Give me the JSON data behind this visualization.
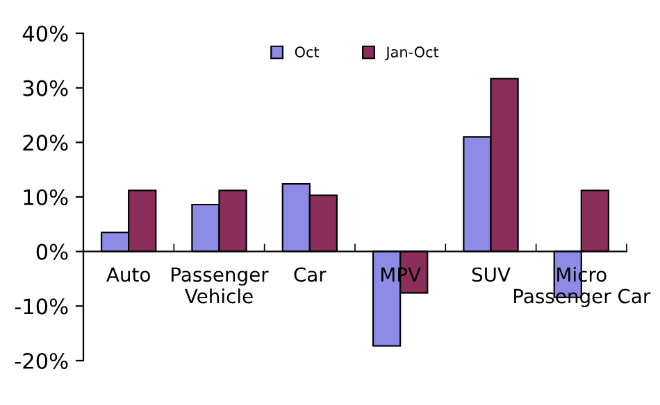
{
  "chart_data": {
    "type": "bar",
    "categories": [
      "Auto",
      "Passenger\nVehicle",
      "Car",
      "MPV",
      "SUV",
      "Micro\nPassenger Car"
    ],
    "series": [
      {
        "name": "Oct",
        "color": "#8c8ce6",
        "values": [
          3.5,
          8.6,
          12.4,
          -17.3,
          21.0,
          -8.4
        ]
      },
      {
        "name": "Jan-Oct",
        "color": "#8b2f5a",
        "values": [
          11.2,
          11.2,
          10.3,
          -7.6,
          31.7,
          11.2
        ]
      }
    ],
    "ylim": [
      -20,
      40
    ],
    "yticks": [
      {
        "value": -20,
        "label": "-20%"
      },
      {
        "value": -10,
        "label": "-10%"
      },
      {
        "value": 0,
        "label": "0%"
      },
      {
        "value": 10,
        "label": "10%"
      },
      {
        "value": 20,
        "label": "20%"
      },
      {
        "value": 30,
        "label": "30%"
      },
      {
        "value": 40,
        "label": "40%"
      }
    ],
    "grid": false,
    "legend": "top"
  }
}
